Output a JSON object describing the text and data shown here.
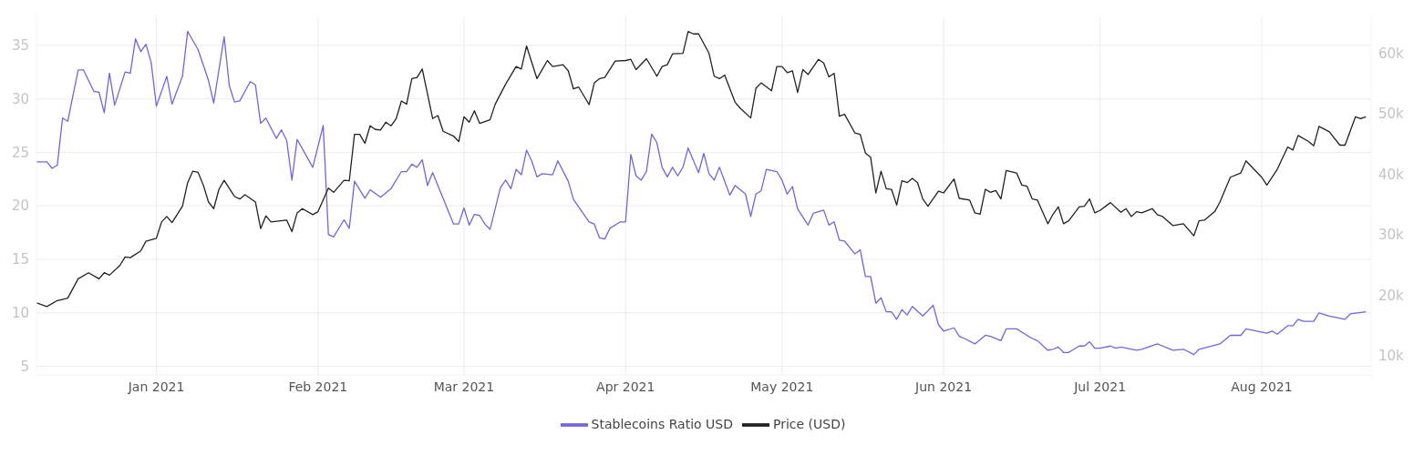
{
  "chart_data": {
    "type": "line",
    "xlim": [
      "2020-12-09",
      "2021-08-22"
    ],
    "xticks": [
      {
        "value": "2021-01-01",
        "label": "Jan 2021"
      },
      {
        "value": "2021-02-01",
        "label": "Feb 2021"
      },
      {
        "value": "2021-03-01",
        "label": "Mar 2021"
      },
      {
        "value": "2021-04-01",
        "label": "Apr 2021"
      },
      {
        "value": "2021-05-01",
        "label": "May 2021"
      },
      {
        "value": "2021-06-01",
        "label": "Jun 2021"
      },
      {
        "value": "2021-07-01",
        "label": "Jul 2021"
      },
      {
        "value": "2021-08-01",
        "label": "Aug 2021"
      }
    ],
    "ylim": [
      4.2,
      37.7
    ],
    "yticks": [
      5,
      10,
      15,
      20,
      25,
      30,
      35
    ],
    "y2lim": [
      6800,
      66100
    ],
    "y2ticks": [
      {
        "value": 10000,
        "label": "10k"
      },
      {
        "value": 20000,
        "label": "20k"
      },
      {
        "value": 30000,
        "label": "30k"
      },
      {
        "value": 40000,
        "label": "40k"
      },
      {
        "value": 50000,
        "label": "50k"
      },
      {
        "value": 60000,
        "label": "60k"
      }
    ],
    "grid": true,
    "legend": "bottom",
    "series": [
      {
        "name": "Stablecoins Ratio USD",
        "color": "#6f66e0",
        "x": [
          "2020-12-09",
          "2020-12-11",
          "2020-12-12",
          "2020-12-13",
          "2020-12-14",
          "2020-12-15",
          "2020-12-17",
          "2020-12-18",
          "2020-12-20",
          "2020-12-21",
          "2020-12-22",
          "2020-12-23",
          "2020-12-24",
          "2020-12-26",
          "2020-12-27",
          "2020-12-28",
          "2020-12-29",
          "2020-12-30",
          "2020-12-31",
          "2021-01-01",
          "2021-01-03",
          "2021-01-04",
          "2021-01-06",
          "2021-01-07",
          "2021-01-09",
          "2021-01-11",
          "2021-01-12",
          "2021-01-14",
          "2021-01-15",
          "2021-01-16",
          "2021-01-17",
          "2021-01-19",
          "2021-01-20",
          "2021-01-21",
          "2021-01-22",
          "2021-01-24",
          "2021-01-25",
          "2021-01-26",
          "2021-01-27",
          "2021-01-28",
          "2021-01-31",
          "2021-02-02",
          "2021-02-03",
          "2021-02-04",
          "2021-02-06",
          "2021-02-07",
          "2021-02-08",
          "2021-02-10",
          "2021-02-11",
          "2021-02-13",
          "2021-02-15",
          "2021-02-17",
          "2021-02-18",
          "2021-02-19",
          "2021-02-20",
          "2021-02-21",
          "2021-02-22",
          "2021-02-23",
          "2021-02-27",
          "2021-02-28",
          "2021-03-01",
          "2021-03-02",
          "2021-03-03",
          "2021-03-04",
          "2021-03-05",
          "2021-03-06",
          "2021-03-08",
          "2021-03-09",
          "2021-03-10",
          "2021-03-11",
          "2021-03-12",
          "2021-03-13",
          "2021-03-14",
          "2021-03-15",
          "2021-03-16",
          "2021-03-18",
          "2021-03-19",
          "2021-03-21",
          "2021-03-22",
          "2021-03-24",
          "2021-03-25",
          "2021-03-26",
          "2021-03-27",
          "2021-03-28",
          "2021-03-29",
          "2021-03-31",
          "2021-04-01",
          "2021-04-02",
          "2021-04-03",
          "2021-04-04",
          "2021-04-05",
          "2021-04-06",
          "2021-04-07",
          "2021-04-08",
          "2021-04-09",
          "2021-04-10",
          "2021-04-11",
          "2021-04-12",
          "2021-04-13",
          "2021-04-15",
          "2021-04-16",
          "2021-04-17",
          "2021-04-18",
          "2021-04-19",
          "2021-04-21",
          "2021-04-22",
          "2021-04-24",
          "2021-04-25",
          "2021-04-26",
          "2021-04-27",
          "2021-04-28",
          "2021-04-30",
          "2021-05-01",
          "2021-05-02",
          "2021-05-03",
          "2021-05-04",
          "2021-05-06",
          "2021-05-07",
          "2021-05-09",
          "2021-05-10",
          "2021-05-11",
          "2021-05-12",
          "2021-05-13",
          "2021-05-15",
          "2021-05-16",
          "2021-05-17",
          "2021-05-18",
          "2021-05-19",
          "2021-05-20",
          "2021-05-21",
          "2021-05-22",
          "2021-05-23",
          "2021-05-24",
          "2021-05-25",
          "2021-05-26",
          "2021-05-28",
          "2021-05-30",
          "2021-05-31",
          "2021-06-01",
          "2021-06-03",
          "2021-06-04",
          "2021-06-05",
          "2021-06-07",
          "2021-06-09",
          "2021-06-10",
          "2021-06-12",
          "2021-06-13",
          "2021-06-15",
          "2021-06-16",
          "2021-06-18",
          "2021-06-19",
          "2021-06-21",
          "2021-06-22",
          "2021-06-23",
          "2021-06-24",
          "2021-06-25",
          "2021-06-27",
          "2021-06-28",
          "2021-06-29",
          "2021-06-30",
          "2021-07-01",
          "2021-07-03",
          "2021-07-04",
          "2021-07-05",
          "2021-07-08",
          "2021-07-09",
          "2021-07-12",
          "2021-07-15",
          "2021-07-17",
          "2021-07-19",
          "2021-07-20",
          "2021-07-24",
          "2021-07-26",
          "2021-07-28",
          "2021-07-29",
          "2021-08-02",
          "2021-08-03",
          "2021-08-04",
          "2021-08-06",
          "2021-08-07",
          "2021-08-08",
          "2021-08-09",
          "2021-08-11",
          "2021-08-12",
          "2021-08-14",
          "2021-08-17",
          "2021-08-18",
          "2021-08-21"
        ],
        "values": [
          24.1,
          24.1,
          23.5,
          23.8,
          28.2,
          27.9,
          32.7,
          32.7,
          30.7,
          30.6,
          28.7,
          32.4,
          29.4,
          32.5,
          32.4,
          35.6,
          34.4,
          35.1,
          33.4,
          29.3,
          32.1,
          29.5,
          32.1,
          36.3,
          34.6,
          31.7,
          29.6,
          35.8,
          31.2,
          29.7,
          29.8,
          31.6,
          31.3,
          27.7,
          28.2,
          26.3,
          27.1,
          26.1,
          22.4,
          26.2,
          23.6,
          27.5,
          17.3,
          17.1,
          18.7,
          17.9,
          22.3,
          20.7,
          21.5,
          20.8,
          21.6,
          23.2,
          23.2,
          23.9,
          23.6,
          24.3,
          21.9,
          23.1,
          18.3,
          18.3,
          19.8,
          18.2,
          19.2,
          19.1,
          18.3,
          17.8,
          21.7,
          22.4,
          21.6,
          23.4,
          22.9,
          25.2,
          24.2,
          22.7,
          23.0,
          22.9,
          24.2,
          22.3,
          20.6,
          19.2,
          18.5,
          18.3,
          17.0,
          16.9,
          17.9,
          18.5,
          18.5,
          24.8,
          22.8,
          22.4,
          23.2,
          26.7,
          25.9,
          23.6,
          22.7,
          23.6,
          22.8,
          23.6,
          25.4,
          23.1,
          24.9,
          23.0,
          22.4,
          23.6,
          21.0,
          21.9,
          21.1,
          19.0,
          21.1,
          21.4,
          23.4,
          23.2,
          22.4,
          21.1,
          21.8,
          19.7,
          18.2,
          19.3,
          19.6,
          18.2,
          18.5,
          16.8,
          16.7,
          15.5,
          15.9,
          13.4,
          13.4,
          10.9,
          11.4,
          10.1,
          10.1,
          9.4,
          10.3,
          9.8,
          10.6,
          9.7,
          10.7,
          8.9,
          8.3,
          8.6,
          7.8,
          7.6,
          7.1,
          7.9,
          7.8,
          7.4,
          8.5,
          8.5,
          8.2,
          7.6,
          7.4,
          6.5,
          6.6,
          6.8,
          6.3,
          6.3,
          6.9,
          6.9,
          7.3,
          6.7,
          6.7,
          6.9,
          6.7,
          6.8,
          6.5,
          6.6,
          7.1,
          6.5,
          6.6,
          6.1,
          6.6,
          7.1,
          7.9,
          7.9,
          8.5,
          8.1,
          8.3,
          8.0,
          8.8,
          8.8,
          9.4,
          9.2,
          9.2,
          10.0,
          9.7,
          9.4,
          9.9,
          10.1
        ]
      },
      {
        "name": "Price (USD)",
        "color": "#222222",
        "axis": "y2",
        "x": [
          "2020-12-09",
          "2020-12-11",
          "2020-12-13",
          "2020-12-15",
          "2020-12-17",
          "2020-12-19",
          "2020-12-21",
          "2020-12-22",
          "2020-12-23",
          "2020-12-25",
          "2020-12-26",
          "2020-12-27",
          "2020-12-29",
          "2020-12-30",
          "2021-01-01",
          "2021-01-02",
          "2021-01-03",
          "2021-01-04",
          "2021-01-06",
          "2021-01-07",
          "2021-01-08",
          "2021-01-09",
          "2021-01-10",
          "2021-01-11",
          "2021-01-12",
          "2021-01-13",
          "2021-01-14",
          "2021-01-16",
          "2021-01-17",
          "2021-01-18",
          "2021-01-20",
          "2021-01-21",
          "2021-01-22",
          "2021-01-23",
          "2021-01-26",
          "2021-01-27",
          "2021-01-28",
          "2021-01-29",
          "2021-01-31",
          "2021-02-01",
          "2021-02-03",
          "2021-02-04",
          "2021-02-06",
          "2021-02-07",
          "2021-02-08",
          "2021-02-09",
          "2021-02-10",
          "2021-02-11",
          "2021-02-12",
          "2021-02-13",
          "2021-02-14",
          "2021-02-15",
          "2021-02-16",
          "2021-02-17",
          "2021-02-18",
          "2021-02-19",
          "2021-02-20",
          "2021-02-21",
          "2021-02-23",
          "2021-02-24",
          "2021-02-25",
          "2021-02-27",
          "2021-02-28",
          "2021-03-01",
          "2021-03-02",
          "2021-03-03",
          "2021-03-04",
          "2021-03-06",
          "2021-03-07",
          "2021-03-09",
          "2021-03-11",
          "2021-03-12",
          "2021-03-13",
          "2021-03-15",
          "2021-03-17",
          "2021-03-18",
          "2021-03-20",
          "2021-03-21",
          "2021-03-22",
          "2021-03-23",
          "2021-03-25",
          "2021-03-26",
          "2021-03-27",
          "2021-03-28",
          "2021-03-30",
          "2021-04-01",
          "2021-04-02",
          "2021-04-03",
          "2021-04-05",
          "2021-04-07",
          "2021-04-08",
          "2021-04-09",
          "2021-04-10",
          "2021-04-12",
          "2021-04-13",
          "2021-04-14",
          "2021-04-15",
          "2021-04-17",
          "2021-04-18",
          "2021-04-19",
          "2021-04-20",
          "2021-04-22",
          "2021-04-23",
          "2021-04-25",
          "2021-04-26",
          "2021-04-27",
          "2021-04-29",
          "2021-04-30",
          "2021-05-01",
          "2021-05-02",
          "2021-05-03",
          "2021-05-04",
          "2021-05-05",
          "2021-05-06",
          "2021-05-08",
          "2021-05-09",
          "2021-05-10",
          "2021-05-11",
          "2021-05-12",
          "2021-05-13",
          "2021-05-15",
          "2021-05-16",
          "2021-05-17",
          "2021-05-18",
          "2021-05-19",
          "2021-05-20",
          "2021-05-21",
          "2021-05-22",
          "2021-05-23",
          "2021-05-24",
          "2021-05-25",
          "2021-05-26",
          "2021-05-27",
          "2021-05-28",
          "2021-05-29",
          "2021-05-31",
          "2021-06-01",
          "2021-06-03",
          "2021-06-04",
          "2021-06-06",
          "2021-06-07",
          "2021-06-08",
          "2021-06-09",
          "2021-06-10",
          "2021-06-11",
          "2021-06-12",
          "2021-06-13",
          "2021-06-15",
          "2021-06-16",
          "2021-06-17",
          "2021-06-18",
          "2021-06-19",
          "2021-06-21",
          "2021-06-22",
          "2021-06-23",
          "2021-06-24",
          "2021-06-25",
          "2021-06-27",
          "2021-06-28",
          "2021-06-29",
          "2021-06-30",
          "2021-07-01",
          "2021-07-03",
          "2021-07-05",
          "2021-07-06",
          "2021-07-07",
          "2021-07-08",
          "2021-07-09",
          "2021-07-11",
          "2021-07-12",
          "2021-07-13",
          "2021-07-15",
          "2021-07-17",
          "2021-07-19",
          "2021-07-20",
          "2021-07-21",
          "2021-07-23",
          "2021-07-24",
          "2021-07-26",
          "2021-07-28",
          "2021-07-29",
          "2021-08-01",
          "2021-08-02",
          "2021-08-04",
          "2021-08-06",
          "2021-08-07",
          "2021-08-08",
          "2021-08-10",
          "2021-08-11",
          "2021-08-12",
          "2021-08-14",
          "2021-08-16",
          "2021-08-17",
          "2021-08-19",
          "2021-08-20",
          "2021-08-21"
        ],
        "values": [
          18700,
          18100,
          19100,
          19500,
          22700,
          23700,
          22700,
          23700,
          23300,
          24900,
          26300,
          26200,
          27300,
          28900,
          29400,
          32100,
          33000,
          32000,
          34700,
          38600,
          40500,
          40300,
          38200,
          35400,
          34300,
          37500,
          39000,
          36300,
          35900,
          36600,
          35400,
          31000,
          33100,
          32100,
          32400,
          30500,
          33600,
          34300,
          33300,
          33800,
          37700,
          37000,
          39000,
          38900,
          46600,
          46600,
          45100,
          48000,
          47400,
          47300,
          48600,
          48000,
          49200,
          52100,
          51600,
          55800,
          56000,
          57400,
          49200,
          49700,
          47100,
          46300,
          45400,
          49500,
          48600,
          50500,
          48400,
          49000,
          51600,
          54900,
          57800,
          57400,
          61200,
          55800,
          58800,
          57800,
          58100,
          57100,
          54100,
          54400,
          51500,
          55100,
          55800,
          56000,
          58700,
          58800,
          59000,
          57300,
          59100,
          56200,
          57800,
          58100,
          59900,
          60000,
          63600,
          63200,
          63200,
          60000,
          56200,
          55800,
          56400,
          51900,
          50900,
          49300,
          54200,
          55100,
          53800,
          57800,
          57800,
          56800,
          57100,
          53500,
          57300,
          56500,
          59000,
          58400,
          56100,
          56700,
          49600,
          49900,
          46800,
          46600,
          43500,
          42800,
          36900,
          40500,
          37600,
          37500,
          34900,
          38900,
          38600,
          39300,
          38600,
          35900,
          34700,
          37200,
          36900,
          39200,
          36000,
          35700,
          33600,
          33400,
          37500,
          37000,
          37300,
          35900,
          40600,
          40200,
          38200,
          38000,
          35900,
          35700,
          31800,
          33400,
          34600,
          31800,
          32300,
          34600,
          34700,
          35900,
          33600,
          34000,
          35300,
          33700,
          34300,
          33000,
          33800,
          33600,
          34300,
          33300,
          33000,
          31500,
          31800,
          29800,
          32300,
          32400,
          33800,
          35400,
          39500,
          40200,
          42200,
          39500,
          38200,
          40800,
          44500,
          44000,
          46400,
          45400,
          44700,
          47900,
          47000,
          44800,
          44800,
          49500,
          49200,
          49500
        ]
      }
    ]
  }
}
